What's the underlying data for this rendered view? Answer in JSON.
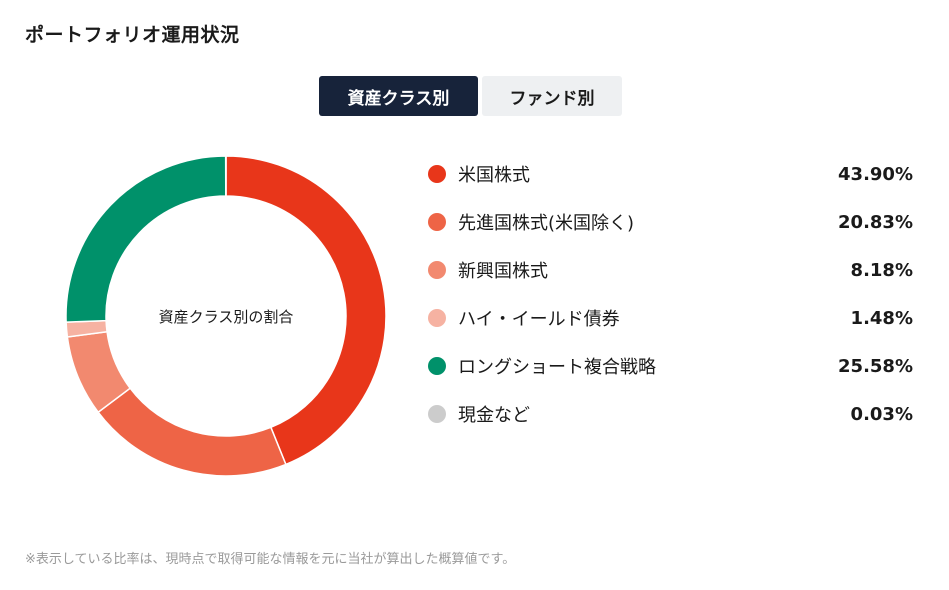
{
  "title": "ポートフォリオ運用状況",
  "tabs": [
    {
      "label": "資産クラス別",
      "active": true
    },
    {
      "label": "ファンド別",
      "active": false
    }
  ],
  "chart_data": {
    "type": "pie",
    "center_label": "資産クラス別の割合",
    "slices": [
      {
        "label": "米国株式",
        "value": 43.9,
        "display": "43.90%",
        "color": "#e8361a"
      },
      {
        "label": "先進国株式(米国除く)",
        "value": 20.83,
        "display": "20.83%",
        "color": "#ee6446"
      },
      {
        "label": "新興国株式",
        "value": 8.18,
        "display": "8.18%",
        "color": "#f2896f"
      },
      {
        "label": "ハイ・イールド債券",
        "value": 1.48,
        "display": "1.48%",
        "color": "#f6b2a2"
      },
      {
        "label": "ロングショート複合戦略",
        "value": 25.58,
        "display": "25.58%",
        "color": "#00916a"
      },
      {
        "label": "現金など",
        "value": 0.03,
        "display": "0.03%",
        "color": "#cccccc"
      }
    ]
  },
  "footnote": "※表示している比率は、現時点で取得可能な情報を元に当社が算出した概算値です。"
}
